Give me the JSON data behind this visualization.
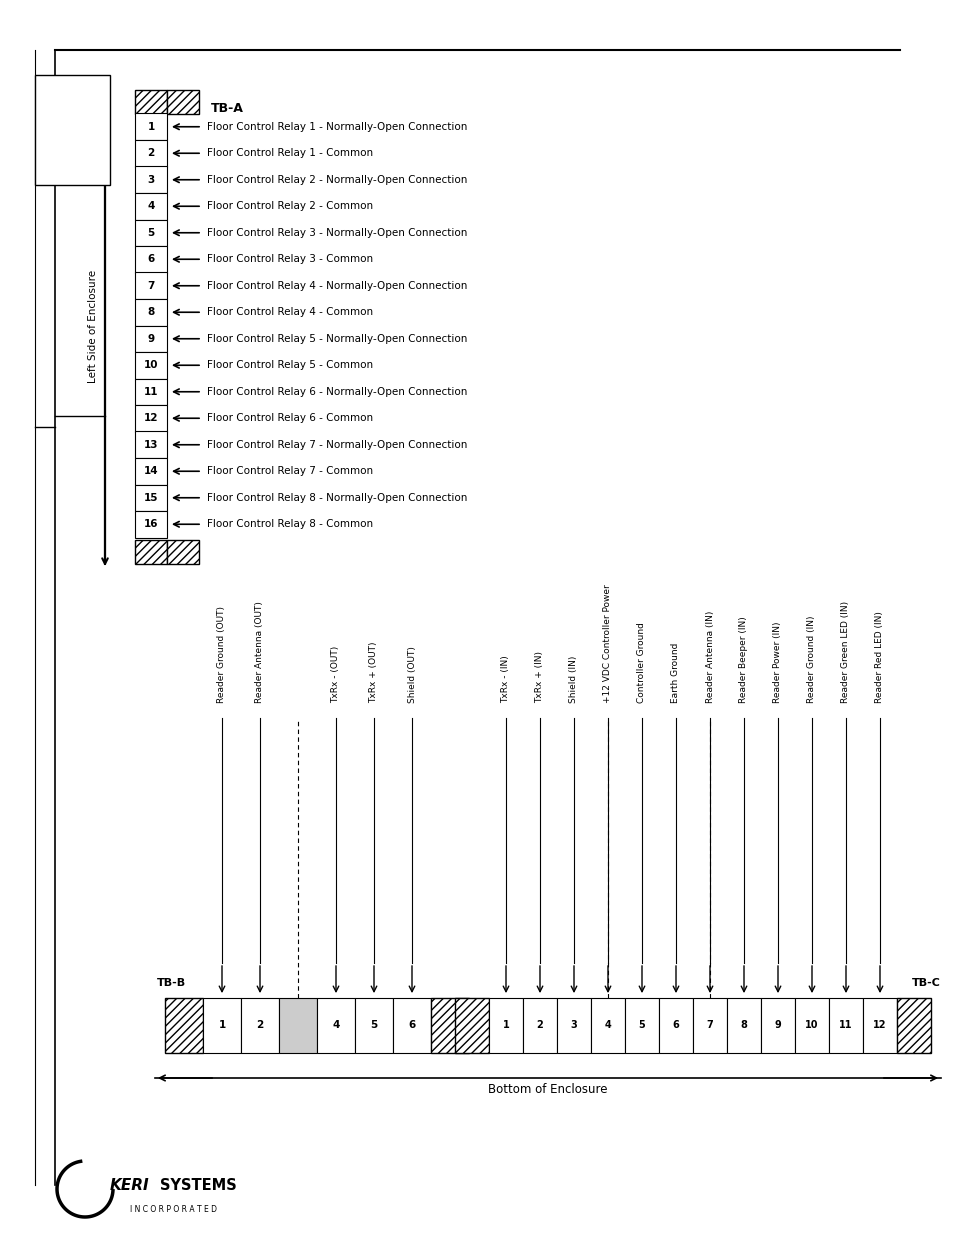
{
  "bg_color": "#ffffff",
  "tba_labels": [
    "Floor Control Relay 1 - Normally-Open Connection",
    "Floor Control Relay 1 - Common",
    "Floor Control Relay 2 - Normally-Open Connection",
    "Floor Control Relay 2 - Common",
    "Floor Control Relay 3 - Normally-Open Connection",
    "Floor Control Relay 3 - Common",
    "Floor Control Relay 4 - Normally-Open Connection",
    "Floor Control Relay 4 - Common",
    "Floor Control Relay 5 - Normally-Open Connection",
    "Floor Control Relay 5 - Common",
    "Floor Control Relay 6 - Normally-Open Connection",
    "Floor Control Relay 6 - Common",
    "Floor Control Relay 7 - Normally-Open Connection",
    "Floor Control Relay 7 - Common",
    "Floor Control Relay 8 - Normally-Open Connection",
    "Floor Control Relay 8 - Common"
  ],
  "tbb_labels": [
    "Reader Ground (OUT)",
    "Reader Antenna (OUT)",
    "TxRx - (OUT)",
    "TxRx + (OUT)",
    "Shield (OUT)"
  ],
  "tbc_labels": [
    "TxRx - (IN)",
    "TxRx + (IN)",
    "Shield (IN)",
    "+12 VDC Controller Power",
    "Controller Ground",
    "Earth Ground",
    "Reader Antenna (IN)",
    "Reader Beeper (IN)",
    "Reader Power (IN)",
    "Reader Ground (IN)",
    "Reader Green LED (IN)",
    "Reader Red LED (IN)"
  ],
  "tbb_nums": [
    "1",
    "2",
    "4",
    "5",
    "6"
  ],
  "tbc_nums": [
    "1",
    "2",
    "3",
    "4",
    "5",
    "6",
    "7",
    "8",
    "9",
    "10",
    "11",
    "12"
  ],
  "bottom_label": "Bottom of Enclosure",
  "left_label": "Left Side of Enclosure",
  "incorporated_label": "I N C O R P O R A T E D"
}
